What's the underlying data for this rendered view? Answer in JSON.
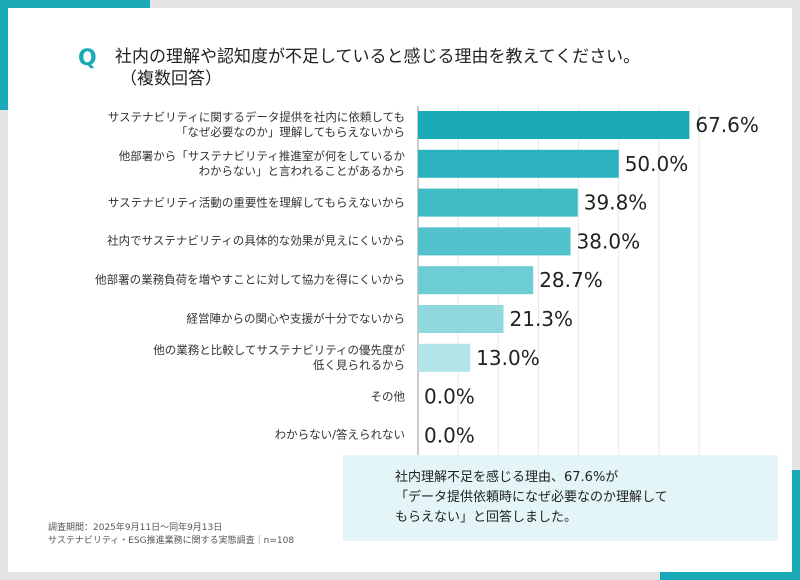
{
  "chart_data": {
    "type": "bar",
    "orientation": "horizontal",
    "question_mark": "Q",
    "title": "社内の理解や認知度が不足していると感じる理由を教えてください。",
    "subtitle": "（複数回答）",
    "categories": [
      "サステナビリティに関するデータ提供を社内に依頼しても\n「なぜ必要なのか」理解してもらえないから",
      "他部署から「サステナビリティ推進室が何をしているか\nわからない」と言われることがあるから",
      "サステナビリティ活動の重要性を理解してもらえないから",
      "社内でサステナビリティの具体的な効果が見えにくいから",
      "他部署の業務負荷を増やすことに対して協力を得にくいから",
      "経営陣からの関心や支援が十分でないから",
      "他の業務と比較してサステナビリティの優先度が\n低く見られるから",
      "その他",
      "わからない/答えられない"
    ],
    "values": [
      67.6,
      50.0,
      39.8,
      38.0,
      28.7,
      21.3,
      13.0,
      0.0,
      0.0
    ],
    "value_labels": [
      "67.6%",
      "50.0%",
      "39.8%",
      "38.0%",
      "28.7%",
      "21.3%",
      "13.0%",
      "0.0%",
      "0.0%"
    ],
    "colors": [
      "#1aa9b6",
      "#2bb2be",
      "#3fbcc6",
      "#52c3cc",
      "#6ccdd4",
      "#8fd9de",
      "#b3e5e8",
      "#c9eef0",
      "#c9eef0"
    ],
    "xlim": [
      0,
      70
    ],
    "xticks": [
      0,
      10,
      20,
      30,
      40,
      50,
      60,
      70
    ],
    "grid": true,
    "callout": "社内理解不足を感じる理由、67.6%が\n「データ提供依頼時になぜ必要なのか理解して\nもらえない」と回答しました。",
    "notes": [
      "調査期間：2025年9月11日〜同年9月13日",
      "サステナビリティ・ESG推進業務に関する実態調査｜n=108"
    ]
  }
}
